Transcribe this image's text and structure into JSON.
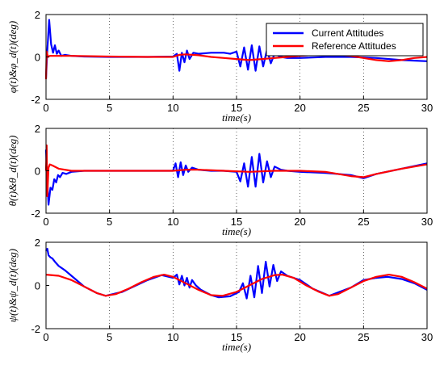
{
  "chart_data": [
    {
      "type": "line",
      "xlabel": "time(s)",
      "ylabel": "φ(t)&φ_d(t)(deg)",
      "xlim": [
        0,
        30
      ],
      "ylim": [
        -2,
        2
      ],
      "xticks": [
        "0",
        "5",
        "10",
        "15",
        "20",
        "25",
        "30"
      ],
      "yticks": [
        "2",
        "0",
        "-2"
      ],
      "grid": "dotted vertical lines",
      "legend": {
        "placement": "top-right",
        "entries": [
          "Current Attitudes",
          "Reference Attitudes"
        ]
      },
      "series": [
        {
          "name": "Current Attitudes",
          "color": "#0000ff",
          "x": [
            0,
            0.1,
            0.25,
            0.4,
            0.55,
            0.7,
            0.85,
            1.0,
            1.2,
            1.5,
            2,
            3,
            5,
            8,
            10,
            10.3,
            10.5,
            10.7,
            10.9,
            11.1,
            11.3,
            11.6,
            12,
            13,
            14,
            14.5,
            15,
            15.3,
            15.6,
            15.9,
            16.2,
            16.5,
            16.8,
            17.1,
            17.4,
            17.7,
            18,
            18.5,
            19,
            20,
            22,
            24,
            26,
            28,
            30
          ],
          "y": [
            -1.0,
            0.3,
            1.75,
            0.6,
            0.2,
            0.55,
            0.15,
            0.3,
            0.05,
            0.1,
            0.05,
            0.02,
            0.0,
            0.0,
            0.02,
            0.15,
            -0.65,
            0.2,
            -0.25,
            0.3,
            -0.1,
            0.2,
            0.15,
            0.2,
            0.2,
            0.15,
            0.25,
            -0.45,
            0.45,
            -0.6,
            0.55,
            -0.65,
            0.5,
            -0.45,
            0.35,
            -0.3,
            0.15,
            0.0,
            -0.05,
            -0.05,
            0.0,
            0.0,
            -0.05,
            -0.15,
            -0.2
          ]
        },
        {
          "name": "Reference Attitudes",
          "color": "#ff0000",
          "x": [
            0,
            0.05,
            0.15,
            0.3,
            0.6,
            1.0,
            2,
            5,
            8,
            10,
            10.5,
            11,
            12,
            13,
            14,
            15,
            16,
            17,
            18,
            19,
            20,
            21,
            22,
            23,
            24,
            25,
            26,
            27,
            28,
            29,
            30
          ],
          "y": [
            -1.05,
            0.25,
            0.0,
            0.05,
            0.05,
            0.05,
            0.05,
            0.02,
            0.0,
            0.0,
            0.1,
            0.12,
            0.08,
            0.0,
            -0.05,
            -0.1,
            -0.15,
            -0.1,
            -0.05,
            0.0,
            0.05,
            0.1,
            0.15,
            0.1,
            0.05,
            -0.05,
            -0.15,
            -0.2,
            -0.15,
            -0.05,
            0.0
          ]
        }
      ]
    },
    {
      "type": "line",
      "xlabel": "time(s)",
      "ylabel": "θ(t)&θ_d(t)(deg)",
      "xlim": [
        0,
        30
      ],
      "ylim": [
        -2,
        2
      ],
      "xticks": [
        "0",
        "5",
        "10",
        "15",
        "20",
        "25",
        "30"
      ],
      "yticks": [
        "2",
        "0",
        "-2"
      ],
      "grid": "dotted vertical lines",
      "series": [
        {
          "name": "Current Attitudes",
          "color": "#0000ff",
          "x": [
            0,
            0.1,
            0.2,
            0.35,
            0.5,
            0.65,
            0.8,
            0.95,
            1.1,
            1.3,
            1.6,
            2,
            3,
            5,
            8,
            10,
            10.2,
            10.4,
            10.6,
            10.8,
            11,
            11.2,
            11.5,
            12,
            13,
            14,
            15,
            15.3,
            15.6,
            15.9,
            16.2,
            16.5,
            16.8,
            17.1,
            17.4,
            17.7,
            18,
            18.5,
            19,
            20,
            22,
            24,
            25,
            26,
            28,
            30
          ],
          "y": [
            1.0,
            -0.5,
            -1.6,
            -0.8,
            -0.9,
            -0.4,
            -0.55,
            -0.2,
            -0.3,
            -0.1,
            -0.15,
            -0.05,
            0.0,
            0.0,
            0.0,
            0.0,
            0.35,
            -0.3,
            0.4,
            -0.2,
            0.25,
            -0.05,
            0.15,
            0.05,
            0.0,
            0.0,
            -0.05,
            -0.5,
            0.35,
            -0.75,
            0.65,
            -0.75,
            0.8,
            -0.55,
            0.45,
            -0.3,
            0.2,
            0.05,
            0.0,
            -0.05,
            -0.1,
            -0.2,
            -0.35,
            -0.15,
            0.1,
            0.35
          ]
        },
        {
          "name": "Reference Attitudes",
          "color": "#ff0000",
          "x": [
            0,
            0.05,
            0.1,
            0.2,
            0.3,
            0.5,
            1,
            2,
            5,
            10,
            11,
            12,
            14,
            16,
            18,
            20,
            22,
            24,
            25,
            26,
            28,
            30
          ],
          "y": [
            0.0,
            1.2,
            -1.2,
            0.15,
            0.3,
            0.25,
            0.1,
            0.0,
            0.0,
            0.0,
            0.05,
            0.05,
            0.0,
            -0.05,
            0.0,
            0.0,
            -0.05,
            -0.25,
            -0.3,
            -0.15,
            0.1,
            0.3
          ]
        }
      ]
    },
    {
      "type": "line",
      "xlabel": "time(s)",
      "ylabel": "ψ(t)&ψ_d(t)(deg)",
      "xlim": [
        0,
        30
      ],
      "ylim": [
        -2,
        2
      ],
      "xticks": [
        "0",
        "5",
        "10",
        "15",
        "20",
        "25",
        "30"
      ],
      "yticks": [
        "2",
        "0",
        "-2"
      ],
      "grid": "dotted vertical lines",
      "series": [
        {
          "name": "Current Attitudes",
          "color": "#0000ff",
          "x": [
            0,
            0.1,
            0.2,
            0.35,
            0.5,
            0.7,
            1.0,
            1.5,
            2,
            2.5,
            3,
            4,
            4.7,
            6,
            8,
            9.1,
            10,
            10.3,
            10.5,
            10.7,
            10.9,
            11.1,
            11.3,
            11.5,
            11.8,
            12.2,
            13,
            13.6,
            14.5,
            15.2,
            15.5,
            15.8,
            16.1,
            16.4,
            16.7,
            17.0,
            17.3,
            17.6,
            17.9,
            18.2,
            18.5,
            19,
            20,
            21,
            22.3,
            24,
            25,
            26,
            26.9,
            28,
            29,
            30
          ],
          "y": [
            1.6,
            1.7,
            1.4,
            1.3,
            1.25,
            1.1,
            0.9,
            0.7,
            0.45,
            0.2,
            -0.05,
            -0.35,
            -0.48,
            -0.3,
            0.25,
            0.48,
            0.35,
            0.5,
            0.05,
            0.45,
            0.0,
            0.35,
            -0.1,
            0.25,
            0.0,
            -0.2,
            -0.45,
            -0.55,
            -0.5,
            -0.3,
            0.1,
            -0.6,
            0.45,
            -0.55,
            0.9,
            -0.35,
            1.1,
            -0.05,
            0.95,
            0.2,
            0.65,
            0.45,
            0.25,
            -0.15,
            -0.48,
            -0.1,
            0.25,
            0.35,
            0.4,
            0.3,
            0.1,
            -0.2
          ]
        },
        {
          "name": "Reference Attitudes",
          "color": "#ff0000",
          "x": [
            0,
            1,
            2,
            3,
            4,
            4.7,
            5.5,
            6.5,
            7.5,
            8.5,
            9.3,
            10,
            11,
            12,
            13,
            13.9,
            15,
            16,
            17,
            18,
            18.6,
            19.5,
            20.5,
            21.5,
            22.3,
            23,
            24,
            25,
            26,
            27,
            28,
            29,
            30
          ],
          "y": [
            0.5,
            0.45,
            0.25,
            -0.05,
            -0.35,
            -0.48,
            -0.4,
            -0.15,
            0.15,
            0.4,
            0.5,
            0.4,
            0.1,
            -0.2,
            -0.45,
            -0.48,
            -0.3,
            0.0,
            0.3,
            0.48,
            0.5,
            0.35,
            0.0,
            -0.3,
            -0.48,
            -0.4,
            -0.1,
            0.2,
            0.4,
            0.5,
            0.4,
            0.15,
            -0.15
          ]
        }
      ]
    }
  ]
}
